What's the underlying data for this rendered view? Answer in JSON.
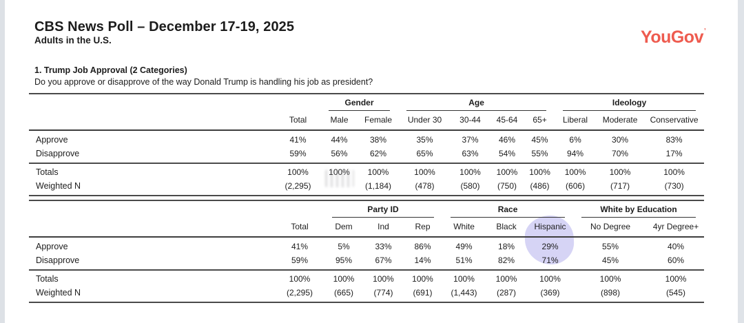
{
  "header": {
    "title": "CBS News Poll – December 17-19, 2025",
    "subtitle": "Adults in the U.S.",
    "brand": "YouGov",
    "brand_mark": "’",
    "brand_color": "#ee5b4f"
  },
  "question": {
    "title": "1. Trump Job Approval (2 Categories)",
    "text": "Do you approve or disapprove of the way Donald Trump is handling his job as president?"
  },
  "tables": [
    {
      "name": "demographics",
      "groups": [
        {
          "label": "",
          "span": 2
        },
        {
          "label": "Gender",
          "span": 2
        },
        {
          "label": "Age",
          "span": 4
        },
        {
          "label": "Ideology",
          "span": 3
        }
      ],
      "columns": [
        "Total",
        "Male",
        "Female",
        "Under 30",
        "30-44",
        "45-64",
        "65+",
        "Liberal",
        "Moderate",
        "Conservative"
      ],
      "rows": [
        {
          "label": "Approve",
          "values": [
            "41%",
            "44%",
            "38%",
            "35%",
            "37%",
            "46%",
            "45%",
            "6%",
            "30%",
            "83%"
          ]
        },
        {
          "label": "Disapprove",
          "values": [
            "59%",
            "56%",
            "62%",
            "65%",
            "63%",
            "54%",
            "55%",
            "94%",
            "70%",
            "17%"
          ]
        }
      ],
      "summary_rows": [
        {
          "label": "Totals",
          "values": [
            "100%",
            "100%",
            "100%",
            "100%",
            "100%",
            "100%",
            "100%",
            "100%",
            "100%",
            "100%"
          ]
        },
        {
          "label": "Weighted N",
          "values": [
            "(2,295)",
            "",
            "(1,184)",
            "(478)",
            "(580)",
            "(750)",
            "(486)",
            "(606)",
            "(717)",
            "(730)"
          ]
        }
      ]
    },
    {
      "name": "politics-race-education",
      "groups": [
        {
          "label": "",
          "span": 2
        },
        {
          "label": "Party ID",
          "span": 3
        },
        {
          "label": "Race",
          "span": 3
        },
        {
          "label": "White by Education",
          "span": 2
        }
      ],
      "columns": [
        "Total",
        "Dem",
        "Ind",
        "Rep",
        "White",
        "Black",
        "Hispanic",
        "No Degree",
        "4yr Degree+"
      ],
      "rows": [
        {
          "label": "Approve",
          "values": [
            "41%",
            "5%",
            "33%",
            "86%",
            "49%",
            "18%",
            "29%",
            "55%",
            "40%"
          ]
        },
        {
          "label": "Disapprove",
          "values": [
            "59%",
            "95%",
            "67%",
            "14%",
            "51%",
            "82%",
            "71%",
            "45%",
            "60%"
          ]
        }
      ],
      "summary_rows": [
        {
          "label": "Totals",
          "values": [
            "100%",
            "100%",
            "100%",
            "100%",
            "100%",
            "100%",
            "100%",
            "100%",
            "100%"
          ]
        },
        {
          "label": "Weighted N",
          "values": [
            "(2,295)",
            "(665)",
            "(774)",
            "(691)",
            "(1,443)",
            "(287)",
            "(369)",
            "(898)",
            "(545)"
          ]
        }
      ]
    }
  ],
  "annotations": {
    "highlighted_column": "Hispanic",
    "highlight_color": "#938fe4"
  }
}
